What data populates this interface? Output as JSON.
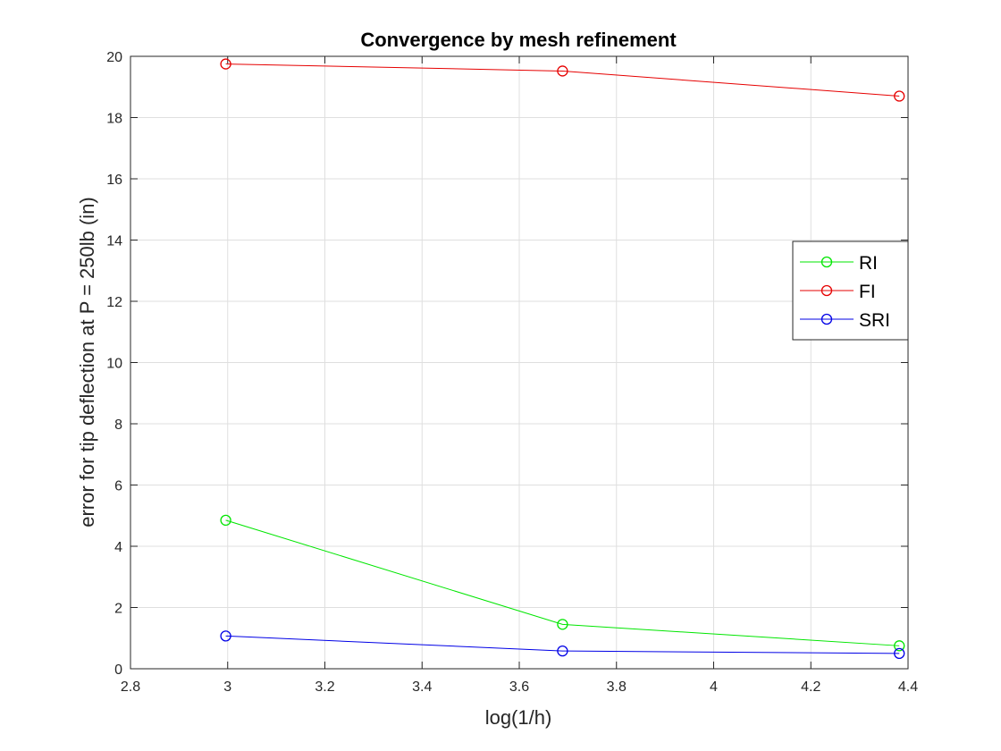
{
  "chart_data": {
    "type": "line",
    "title": "Convergence by mesh refinement",
    "xlabel": "log(1/h)",
    "ylabel": "error for tip deflection at P = 250lb (in)",
    "xlim": [
      2.8,
      4.4
    ],
    "ylim": [
      0,
      20
    ],
    "xticks": [
      "2.8",
      "3",
      "3.2",
      "3.4",
      "3.6",
      "3.8",
      "4",
      "4.2",
      "4.4"
    ],
    "yticks": [
      "0",
      "2",
      "4",
      "6",
      "8",
      "10",
      "12",
      "14",
      "16",
      "18",
      "20"
    ],
    "grid": true,
    "legend_position": "right",
    "x": [
      2.996,
      3.689,
      4.382
    ],
    "series": [
      {
        "name": "RI",
        "color": "#00e600",
        "values": [
          4.85,
          1.45,
          0.75
        ],
        "marker": "circle"
      },
      {
        "name": "FI",
        "color": "#e60000",
        "values": [
          19.75,
          19.52,
          18.7
        ],
        "marker": "circle"
      },
      {
        "name": "SRI",
        "color": "#0000e6",
        "values": [
          1.07,
          0.58,
          0.5
        ],
        "marker": "circle"
      }
    ]
  }
}
